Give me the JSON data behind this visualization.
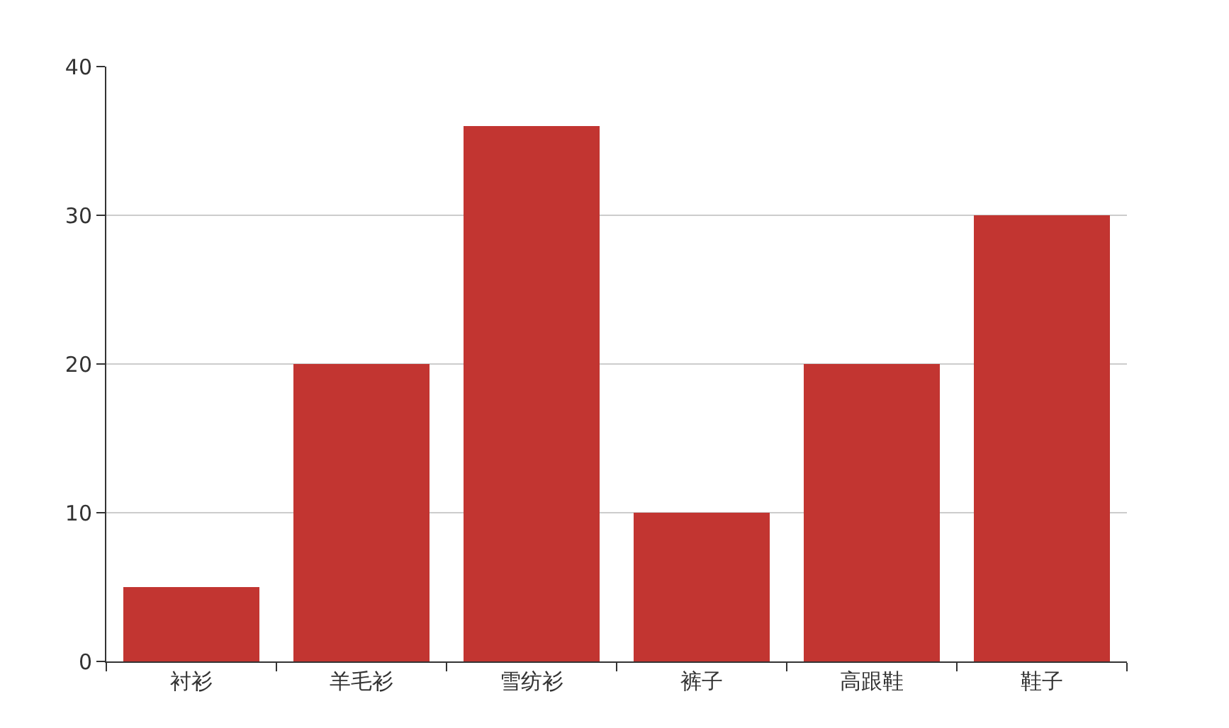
{
  "chart_data": {
    "type": "bar",
    "categories": [
      "衬衫",
      "羊毛衫",
      "雪纺衫",
      "裤子",
      "高跟鞋",
      "鞋子"
    ],
    "values": [
      5,
      20,
      36,
      10,
      20,
      30
    ],
    "color": "#c23531",
    "ylim": [
      0,
      40
    ],
    "yticks": [
      0,
      10,
      20,
      30,
      40
    ],
    "grid": "y"
  }
}
